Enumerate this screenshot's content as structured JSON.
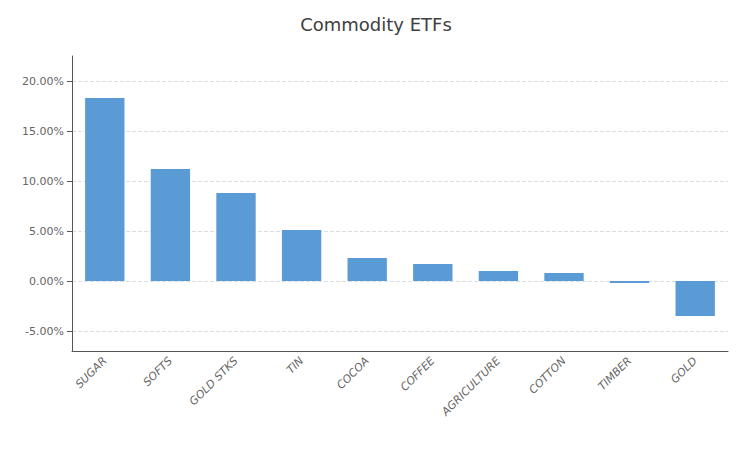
{
  "chart_data": {
    "type": "bar",
    "title": "Commodity ETFs",
    "categories": [
      "SUGAR",
      "SOFTS",
      "GOLD STKS",
      "TIN",
      "COCOA",
      "COFFEE",
      "AGRICULTURE",
      "COTTON",
      "TIMBER",
      "GOLD"
    ],
    "values": [
      0.183,
      0.112,
      0.088,
      0.051,
      0.023,
      0.017,
      0.01,
      0.008,
      -0.002,
      -0.035
    ],
    "color": "#5b9bd5",
    "ylim": [
      -0.07,
      0.225
    ],
    "yticks": [
      {
        "value": -0.05,
        "label": "-5.00%"
      },
      {
        "value": 0.0,
        "label": "0.00%"
      },
      {
        "value": 0.05,
        "label": "5.00%"
      },
      {
        "value": 0.1,
        "label": "10.00%"
      },
      {
        "value": 0.15,
        "label": "15.00%"
      },
      {
        "value": 0.2,
        "label": "20.00%"
      }
    ],
    "grid": true
  }
}
